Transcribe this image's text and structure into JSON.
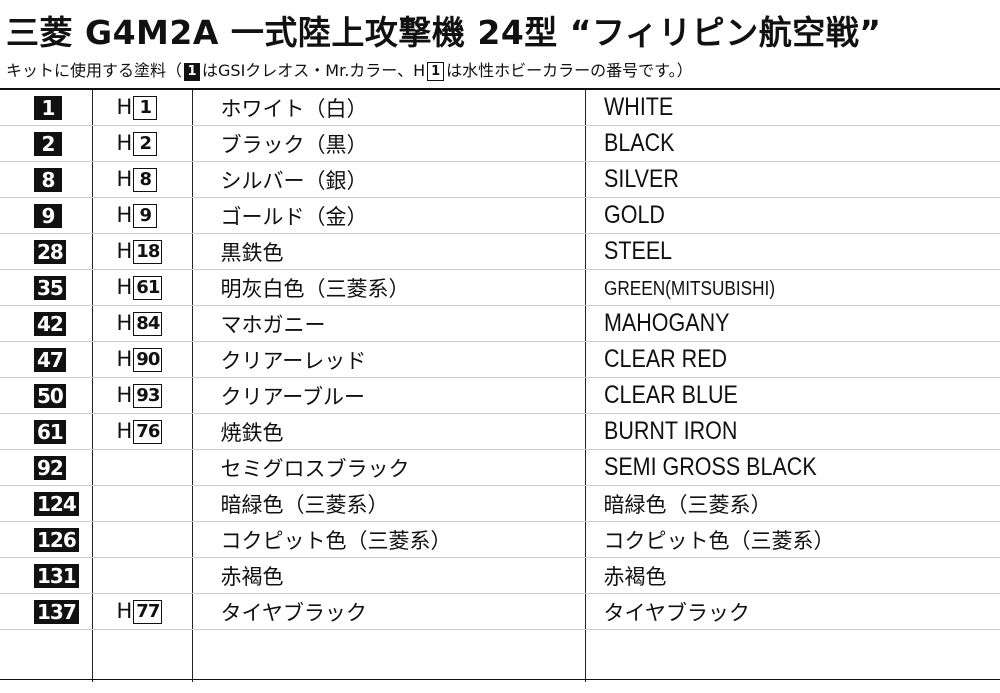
{
  "header": {
    "title": "三菱 G4M2A 一式陸上攻撃機 24型 “フィリピン航空戦”",
    "legend_prefix": "キットに使用する塗料（",
    "legend_mid": "はGSIクレオス・Mr.カラー、H",
    "legend_suffix": "は水性ホビーカラーの番号です。）",
    "legend_num": "1"
  },
  "rows": [
    {
      "mr": "1",
      "h_prefix": "H",
      "h": "1",
      "jp": "ホワイト（白）",
      "en": "WHITE"
    },
    {
      "mr": "2",
      "h_prefix": "H",
      "h": "2",
      "jp": "ブラック（黒）",
      "en": "BLACK"
    },
    {
      "mr": "8",
      "h_prefix": "H",
      "h": "8",
      "jp": "シルバー（銀）",
      "en": "SILVER"
    },
    {
      "mr": "9",
      "h_prefix": "H",
      "h": "9",
      "jp": "ゴールド（金）",
      "en": "GOLD"
    },
    {
      "mr": "28",
      "h_prefix": "H",
      "h": "18",
      "jp": "黒鉄色",
      "en": "STEEL"
    },
    {
      "mr": "35",
      "h_prefix": "H",
      "h": "61",
      "jp": "明灰白色（三菱系）",
      "en": "GREEN(MITSUBISHI)"
    },
    {
      "mr": "42",
      "h_prefix": "H",
      "h": "84",
      "jp": "マホガニー",
      "en": "MAHOGANY"
    },
    {
      "mr": "47",
      "h_prefix": "H",
      "h": "90",
      "jp": "クリアーレッド",
      "en": "CLEAR RED"
    },
    {
      "mr": "50",
      "h_prefix": "H",
      "h": "93",
      "jp": "クリアーブルー",
      "en": "CLEAR BLUE"
    },
    {
      "mr": "61",
      "h_prefix": "H",
      "h": "76",
      "jp": "焼鉄色",
      "en": "BURNT IRON"
    },
    {
      "mr": "92",
      "h_prefix": "",
      "h": "",
      "jp": "セミグロスブラック",
      "en": "SEMI GROSS BLACK"
    },
    {
      "mr": "124",
      "h_prefix": "",
      "h": "",
      "jp": "暗緑色（三菱系）",
      "en": "暗緑色（三菱系）"
    },
    {
      "mr": "126",
      "h_prefix": "",
      "h": "",
      "jp": "コクピット色（三菱系）",
      "en": "コクピット色（三菱系）"
    },
    {
      "mr": "131",
      "h_prefix": "",
      "h": "",
      "jp": "赤褐色",
      "en": "赤褐色"
    },
    {
      "mr": "137",
      "h_prefix": "H",
      "h": "77",
      "jp": "タイヤブラック",
      "en": "タイヤブラック"
    }
  ]
}
